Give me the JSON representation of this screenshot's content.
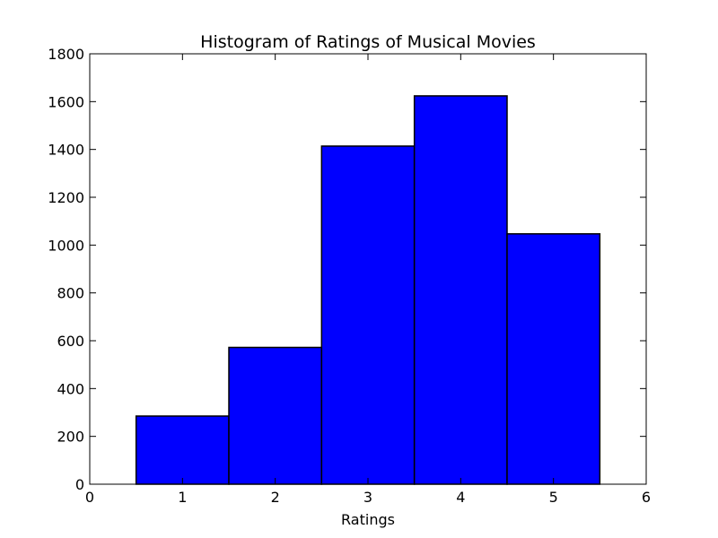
{
  "chart_data": {
    "type": "bar",
    "title": "Histogram of Ratings of Musical Movies",
    "xlabel": "Ratings",
    "ylabel": "",
    "xlim": [
      0,
      6
    ],
    "ylim": [
      0,
      1800
    ],
    "xticks": [
      0,
      1,
      2,
      3,
      4,
      5,
      6
    ],
    "yticks": [
      0,
      200,
      400,
      600,
      800,
      1000,
      1200,
      1400,
      1600,
      1800
    ],
    "bins": [
      {
        "x0": 0.5,
        "x1": 1.5,
        "value": 285
      },
      {
        "x0": 1.5,
        "x1": 2.5,
        "value": 572
      },
      {
        "x0": 2.5,
        "x1": 3.5,
        "value": 1414
      },
      {
        "x0": 3.5,
        "x1": 4.5,
        "value": 1624
      },
      {
        "x0": 4.5,
        "x1": 5.5,
        "value": 1047
      }
    ],
    "bar_color": "#0000ff",
    "edge_color": "#000000",
    "grid": false,
    "legend": "none"
  }
}
